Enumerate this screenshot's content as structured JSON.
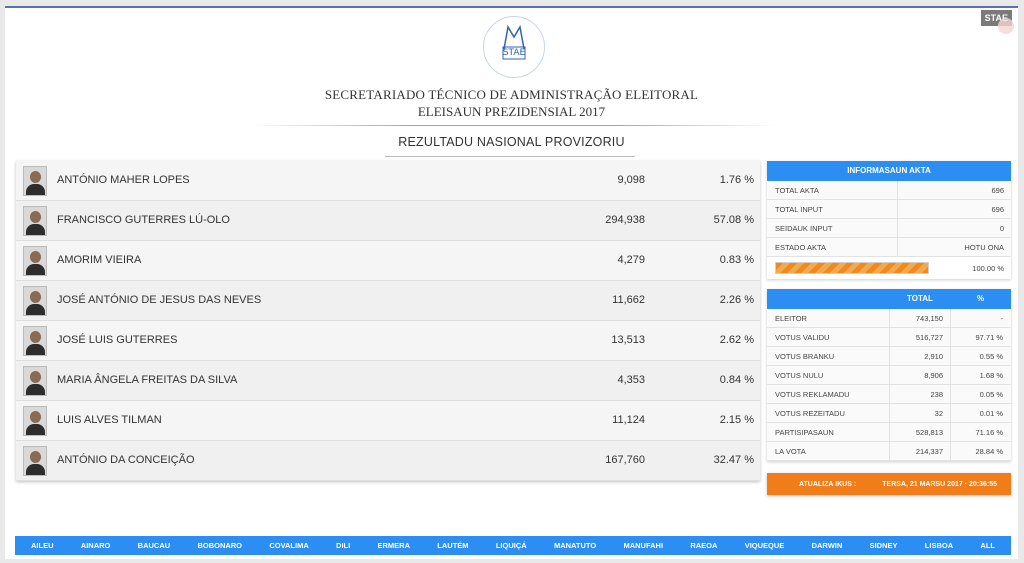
{
  "badge": "STAE",
  "logo_text": "STAE",
  "header": {
    "line1": "SECRETARIADO TÉCNICO DE ADMINISTRAÇÃO ELEITORAL",
    "line2": "ELEISAUN PREZIDENSIAL 2017",
    "subtitle": "REZULTADU NASIONAL PROVIZORIU"
  },
  "candidates": [
    {
      "name": "ANTÓNIO MAHER LOPES",
      "votes": "9,098",
      "pct": "1.76 %"
    },
    {
      "name": "FRANCISCO GUTERRES LÚ-OLO",
      "votes": "294,938",
      "pct": "57.08 %"
    },
    {
      "name": "AMORIM VIEIRA",
      "votes": "4,279",
      "pct": "0.83 %"
    },
    {
      "name": "JOSÉ ANTÓNIO DE JESUS DAS NEVES",
      "votes": "11,662",
      "pct": "2.26 %"
    },
    {
      "name": "JOSÉ LUIS GUTERRES",
      "votes": "13,513",
      "pct": "2.62 %"
    },
    {
      "name": "MARIA ÂNGELA FREITAS DA SILVA",
      "votes": "4,353",
      "pct": "0.84 %"
    },
    {
      "name": "LUIS ALVES TILMAN",
      "votes": "11,124",
      "pct": "2.15 %"
    },
    {
      "name": "ANTÓNIO DA CONCEIÇÃO",
      "votes": "167,760",
      "pct": "32.47 %"
    }
  ],
  "akta": {
    "title": "INFORMASAUN AKTA",
    "rows": [
      {
        "label": "TOTAL AKTA",
        "value": "696"
      },
      {
        "label": "TOTAL INPUT",
        "value": "696"
      },
      {
        "label": "SEIDAUK INPUT",
        "value": "0"
      },
      {
        "label": "ESTADO AKTA",
        "value": "HOTU ONA"
      }
    ],
    "progress_label": "100.00 %",
    "progress_value": 1.0
  },
  "totals": {
    "col_total": "TOTAL",
    "col_pct": "%",
    "rows": [
      {
        "label": "ELEITOR",
        "total": "743,150",
        "pct": "-"
      },
      {
        "label": "VOTUS VALIDU",
        "total": "516,727",
        "pct": "97.71 %"
      },
      {
        "label": "VOTUS BRANKU",
        "total": "2,910",
        "pct": "0.55 %"
      },
      {
        "label": "VOTUS NULU",
        "total": "8,906",
        "pct": "1.68 %"
      },
      {
        "label": "VOTUS REKLAMADU",
        "total": "238",
        "pct": "0.05 %"
      },
      {
        "label": "VOTUS REZEITADU",
        "total": "32",
        "pct": "0.01 %"
      },
      {
        "label": "PARTISIPASAUN",
        "total": "528,813",
        "pct": "71.16 %"
      },
      {
        "label": "LA VOTA",
        "total": "214,337",
        "pct": "28.84 %"
      }
    ]
  },
  "update": {
    "label": "ATUALIZA IKUS :",
    "datetime": "TERSA, 21 MARSU 2017 · 20:36:55"
  },
  "nav": [
    "AILEU",
    "AINARO",
    "BAUCAU",
    "BOBONARO",
    "COVALIMA",
    "DILI",
    "ERMERA",
    "LAUTÉM",
    "LIQUIÇÁ",
    "MANATUTO",
    "MANUFAHI",
    "RAEOA",
    "VIQUEQUE",
    "DARWIN",
    "SIDNEY",
    "LISBOA",
    "ALL"
  ]
}
